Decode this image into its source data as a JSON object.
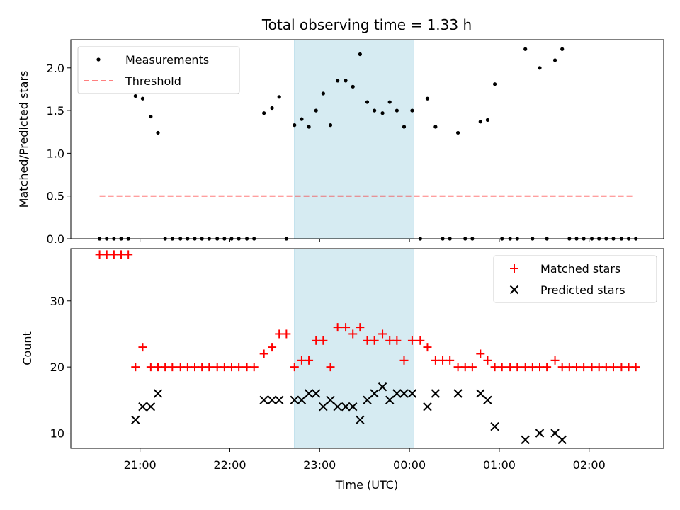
{
  "chart_data": {
    "title": "Total observing time = 1.33 h",
    "xlabel": "Time (UTC)",
    "x_unit": "hours (UTC, 24 = 00:00)",
    "xlim": [
      20.23,
      26.83
    ],
    "x_ticks": [
      {
        "value": 21,
        "label": "21:00"
      },
      {
        "value": 22,
        "label": "22:00"
      },
      {
        "value": 23,
        "label": "23:00"
      },
      {
        "value": 24,
        "label": "00:00"
      },
      {
        "value": 25,
        "label": "01:00"
      },
      {
        "value": 26,
        "label": "02:00"
      }
    ],
    "highlight_span": {
      "x_start": 22.72,
      "x_end": 24.05,
      "color": "#add8e6"
    },
    "top": {
      "type": "scatter",
      "ylabel": "Matched/Predicted stars",
      "ylim": [
        0,
        2.33
      ],
      "y_ticks": [
        {
          "value": 0,
          "label": "0.0"
        },
        {
          "value": 0.5,
          "label": "0.5"
        },
        {
          "value": 1,
          "label": "1.0"
        },
        {
          "value": 1.5,
          "label": "1.5"
        },
        {
          "value": 2,
          "label": "2.0"
        }
      ],
      "legend": {
        "position": "upper left",
        "measurements_label": "Measurements",
        "threshold_label": "Threshold"
      },
      "threshold": {
        "value": 0.5,
        "x_start": 20.55,
        "x_end": 26.5,
        "color": "#ff0000"
      },
      "points": [
        [
          20.55,
          0
        ],
        [
          20.63,
          0
        ],
        [
          20.71,
          0
        ],
        [
          20.79,
          0
        ],
        [
          20.87,
          0
        ],
        [
          20.95,
          1.67
        ],
        [
          21.03,
          1.64
        ],
        [
          21.12,
          1.43
        ],
        [
          21.2,
          1.24
        ],
        [
          21.28,
          0
        ],
        [
          21.36,
          0
        ],
        [
          21.45,
          0
        ],
        [
          21.53,
          0
        ],
        [
          21.61,
          0
        ],
        [
          21.69,
          0
        ],
        [
          21.77,
          0
        ],
        [
          21.86,
          0
        ],
        [
          21.94,
          0
        ],
        [
          22.02,
          0
        ],
        [
          22.1,
          0
        ],
        [
          22.19,
          0
        ],
        [
          22.27,
          0
        ],
        [
          22.38,
          1.47
        ],
        [
          22.47,
          1.53
        ],
        [
          22.55,
          1.66
        ],
        [
          22.63,
          0
        ],
        [
          22.72,
          1.33
        ],
        [
          22.8,
          1.4
        ],
        [
          22.88,
          1.31
        ],
        [
          22.96,
          1.5
        ],
        [
          23.04,
          1.7
        ],
        [
          23.12,
          1.33
        ],
        [
          23.2,
          1.85
        ],
        [
          23.29,
          1.85
        ],
        [
          23.37,
          1.78
        ],
        [
          23.45,
          2.16
        ],
        [
          23.53,
          1.6
        ],
        [
          23.61,
          1.5
        ],
        [
          23.7,
          1.47
        ],
        [
          23.78,
          1.6
        ],
        [
          23.86,
          1.5
        ],
        [
          23.94,
          1.31
        ],
        [
          24.03,
          1.5
        ],
        [
          24.12,
          0
        ],
        [
          24.2,
          1.64
        ],
        [
          24.29,
          1.31
        ],
        [
          24.37,
          0
        ],
        [
          24.45,
          0
        ],
        [
          24.54,
          1.24
        ],
        [
          24.62,
          0
        ],
        [
          24.7,
          0
        ],
        [
          24.79,
          1.37
        ],
        [
          24.87,
          1.39
        ],
        [
          24.95,
          1.81
        ],
        [
          25.03,
          0
        ],
        [
          25.12,
          0
        ],
        [
          25.2,
          0
        ],
        [
          25.29,
          2.22
        ],
        [
          25.37,
          0
        ],
        [
          25.45,
          2
        ],
        [
          25.53,
          0
        ],
        [
          25.62,
          2.09
        ],
        [
          25.7,
          2.22
        ],
        [
          25.78,
          0
        ],
        [
          25.86,
          0
        ],
        [
          25.94,
          0
        ],
        [
          26.03,
          0
        ],
        [
          26.11,
          0
        ],
        [
          26.19,
          0
        ],
        [
          26.27,
          0
        ],
        [
          26.36,
          0
        ],
        [
          26.44,
          0
        ],
        [
          26.52,
          0
        ]
      ]
    },
    "bottom": {
      "type": "scatter",
      "ylabel": "Count",
      "ylim": [
        7.7,
        37.9
      ],
      "y_ticks": [
        {
          "value": 10,
          "label": "10"
        },
        {
          "value": 20,
          "label": "20"
        },
        {
          "value": 30,
          "label": "30"
        }
      ],
      "legend": {
        "position": "upper right"
      },
      "series": [
        {
          "name": "Matched stars",
          "marker": "plus",
          "color": "#ff0000",
          "points": [
            [
              20.55,
              37
            ],
            [
              20.63,
              37
            ],
            [
              20.71,
              37
            ],
            [
              20.79,
              37
            ],
            [
              20.87,
              37
            ],
            [
              20.95,
              20
            ],
            [
              21.03,
              23
            ],
            [
              21.12,
              20
            ],
            [
              21.2,
              20
            ],
            [
              21.28,
              20
            ],
            [
              21.36,
              20
            ],
            [
              21.45,
              20
            ],
            [
              21.53,
              20
            ],
            [
              21.61,
              20
            ],
            [
              21.69,
              20
            ],
            [
              21.77,
              20
            ],
            [
              21.86,
              20
            ],
            [
              21.94,
              20
            ],
            [
              22.02,
              20
            ],
            [
              22.1,
              20
            ],
            [
              22.19,
              20
            ],
            [
              22.27,
              20
            ],
            [
              22.38,
              22
            ],
            [
              22.47,
              23
            ],
            [
              22.55,
              25
            ],
            [
              22.63,
              25
            ],
            [
              22.72,
              20
            ],
            [
              22.8,
              21
            ],
            [
              22.88,
              21
            ],
            [
              22.96,
              24
            ],
            [
              23.04,
              24
            ],
            [
              23.12,
              20
            ],
            [
              23.2,
              26
            ],
            [
              23.29,
              26
            ],
            [
              23.37,
              25
            ],
            [
              23.45,
              26
            ],
            [
              23.53,
              24
            ],
            [
              23.61,
              24
            ],
            [
              23.7,
              25
            ],
            [
              23.78,
              24
            ],
            [
              23.86,
              24
            ],
            [
              23.94,
              21
            ],
            [
              24.03,
              24
            ],
            [
              24.12,
              24
            ],
            [
              24.2,
              23
            ],
            [
              24.29,
              21
            ],
            [
              24.37,
              21
            ],
            [
              24.45,
              21
            ],
            [
              24.54,
              20
            ],
            [
              24.62,
              20
            ],
            [
              24.7,
              20
            ],
            [
              24.79,
              22
            ],
            [
              24.87,
              21
            ],
            [
              24.95,
              20
            ],
            [
              25.03,
              20
            ],
            [
              25.12,
              20
            ],
            [
              25.2,
              20
            ],
            [
              25.29,
              20
            ],
            [
              25.37,
              20
            ],
            [
              25.45,
              20
            ],
            [
              25.53,
              20
            ],
            [
              25.62,
              21
            ],
            [
              25.7,
              20
            ],
            [
              25.78,
              20
            ],
            [
              25.86,
              20
            ],
            [
              25.94,
              20
            ],
            [
              26.03,
              20
            ],
            [
              26.11,
              20
            ],
            [
              26.19,
              20
            ],
            [
              26.27,
              20
            ],
            [
              26.36,
              20
            ],
            [
              26.44,
              20
            ],
            [
              26.52,
              20
            ]
          ]
        },
        {
          "name": "Predicted stars",
          "marker": "x",
          "color": "#000000",
          "points": [
            [
              20.95,
              12
            ],
            [
              21.03,
              14
            ],
            [
              21.12,
              14
            ],
            [
              21.2,
              16
            ],
            [
              22.38,
              15
            ],
            [
              22.47,
              15
            ],
            [
              22.55,
              15
            ],
            [
              22.72,
              15
            ],
            [
              22.8,
              15
            ],
            [
              22.88,
              16
            ],
            [
              22.96,
              16
            ],
            [
              23.04,
              14
            ],
            [
              23.12,
              15
            ],
            [
              23.2,
              14
            ],
            [
              23.29,
              14
            ],
            [
              23.37,
              14
            ],
            [
              23.45,
              12
            ],
            [
              23.53,
              15
            ],
            [
              23.61,
              16
            ],
            [
              23.7,
              17
            ],
            [
              23.78,
              15
            ],
            [
              23.86,
              16
            ],
            [
              23.94,
              16
            ],
            [
              24.03,
              16
            ],
            [
              24.2,
              14
            ],
            [
              24.29,
              16
            ],
            [
              24.54,
              16
            ],
            [
              24.79,
              16
            ],
            [
              24.87,
              15
            ],
            [
              24.95,
              11
            ],
            [
              25.29,
              9
            ],
            [
              25.45,
              10
            ],
            [
              25.62,
              10
            ],
            [
              25.7,
              9
            ]
          ]
        }
      ]
    }
  }
}
